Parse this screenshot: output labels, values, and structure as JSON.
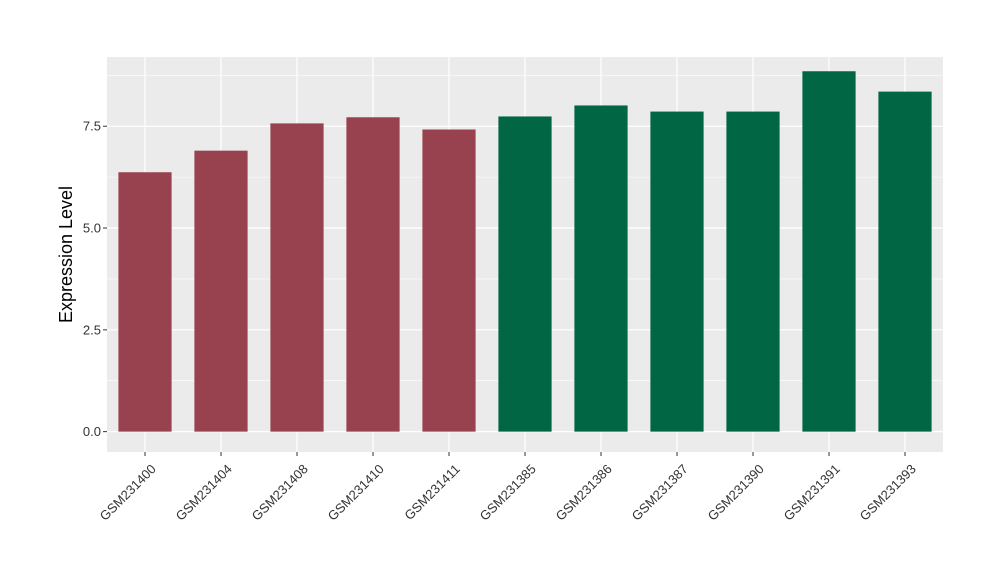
{
  "chart_data": {
    "type": "bar",
    "title": "",
    "xlabel": "",
    "ylabel": "Expression Level",
    "ylim": [
      -0.5,
      9.2
    ],
    "yticks": [
      0.0,
      2.5,
      5.0,
      7.5
    ],
    "ytick_labels": [
      "0.0",
      "2.5",
      "5.0",
      "7.5"
    ],
    "grid": true,
    "legend": "none",
    "categories": [
      "GSM231400",
      "GSM231404",
      "GSM231408",
      "GSM231410",
      "GSM231411",
      "GSM231385",
      "GSM231386",
      "GSM231387",
      "GSM231390",
      "GSM231391",
      "GSM231393"
    ],
    "values": [
      6.37,
      6.9,
      7.57,
      7.72,
      7.42,
      7.74,
      8.01,
      7.86,
      7.86,
      8.85,
      8.35
    ],
    "group_colors": [
      "#99424f",
      "#99424f",
      "#99424f",
      "#99424f",
      "#99424f",
      "#006644",
      "#006644",
      "#006644",
      "#006644",
      "#006644",
      "#006644"
    ],
    "panel_background": "#ebebeb",
    "grid_color": "#ffffff"
  }
}
